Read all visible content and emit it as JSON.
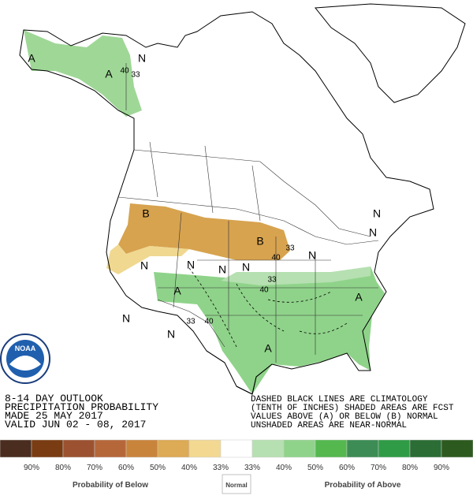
{
  "outlook": {
    "lines": [
      "8-14 DAY OUTLOOK",
      "PRECIPITATION PROBABILITY",
      "MADE 25 MAY 2017",
      "VALID  JUN 02 - 08, 2017"
    ]
  },
  "note": {
    "lines": [
      "DASHED BLACK LINES ARE CLIMATOLOGY",
      "(TENTH OF INCHES) SHADED AREAS ARE FCST",
      "VALUES ABOVE (A) OR BELOW (B) NORMAL",
      "UNSHADED AREAS ARE NEAR-NORMAL"
    ]
  },
  "logo": {
    "text": "NOAA"
  },
  "map": {
    "labels": [
      "A",
      "A",
      "40",
      "33",
      "N",
      "B",
      "B",
      "33",
      "40",
      "N",
      "N",
      "N",
      "N",
      "N",
      "N",
      "N",
      "33",
      "40",
      "A",
      "A",
      "A",
      "33",
      "40",
      "N",
      "N"
    ]
  },
  "legend": {
    "colors": [
      "#4a2d1f",
      "#7a3c12",
      "#9c5230",
      "#b5673a",
      "#c9843c",
      "#ddaa55",
      "#f2d891",
      "#ffffff",
      "#b6e0b1",
      "#8fd38a",
      "#54b84f",
      "#3d8c55",
      "#2f9b46",
      "#2b6d35",
      "#2d5a1e"
    ],
    "labels": [
      "90%",
      "80%",
      "70%",
      "60%",
      "50%",
      "40%",
      "33%",
      "33%",
      "40%",
      "50%",
      "60%",
      "70%",
      "80%",
      "90%"
    ],
    "captions": [
      "Probability of Below",
      "Normal",
      "Probability of Above"
    ]
  }
}
